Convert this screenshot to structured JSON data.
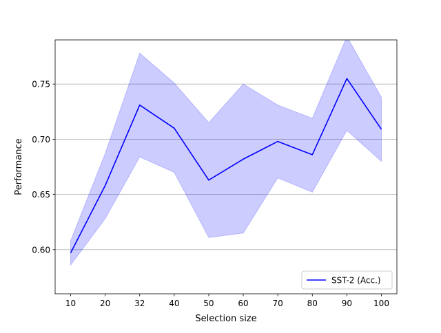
{
  "chart_data": {
    "type": "line",
    "title": "",
    "xlabel": "Selection size",
    "ylabel": "Performance",
    "categories": [
      "10",
      "20",
      "32",
      "40",
      "50",
      "60",
      "70",
      "80",
      "90",
      "100"
    ],
    "ylim": [
      0.56,
      0.79
    ],
    "yticks": [
      0.6,
      0.65,
      0.7,
      0.75
    ],
    "ytick_labels": [
      "0.60",
      "0.65",
      "0.70",
      "0.75"
    ],
    "grid": "horizontal",
    "legend_position": "lower-right",
    "series": [
      {
        "name": "SST-2 (Acc.)",
        "color": "#0000ff",
        "band_color": "#0000ff",
        "values": [
          0.597,
          0.658,
          0.731,
          0.71,
          0.663,
          0.682,
          0.698,
          0.686,
          0.755,
          0.709
        ],
        "lower": [
          0.586,
          0.628,
          0.684,
          0.67,
          0.611,
          0.615,
          0.665,
          0.652,
          0.708,
          0.68
        ],
        "upper": [
          0.608,
          0.687,
          0.778,
          0.751,
          0.715,
          0.75,
          0.731,
          0.719,
          0.793,
          0.738
        ]
      }
    ]
  }
}
